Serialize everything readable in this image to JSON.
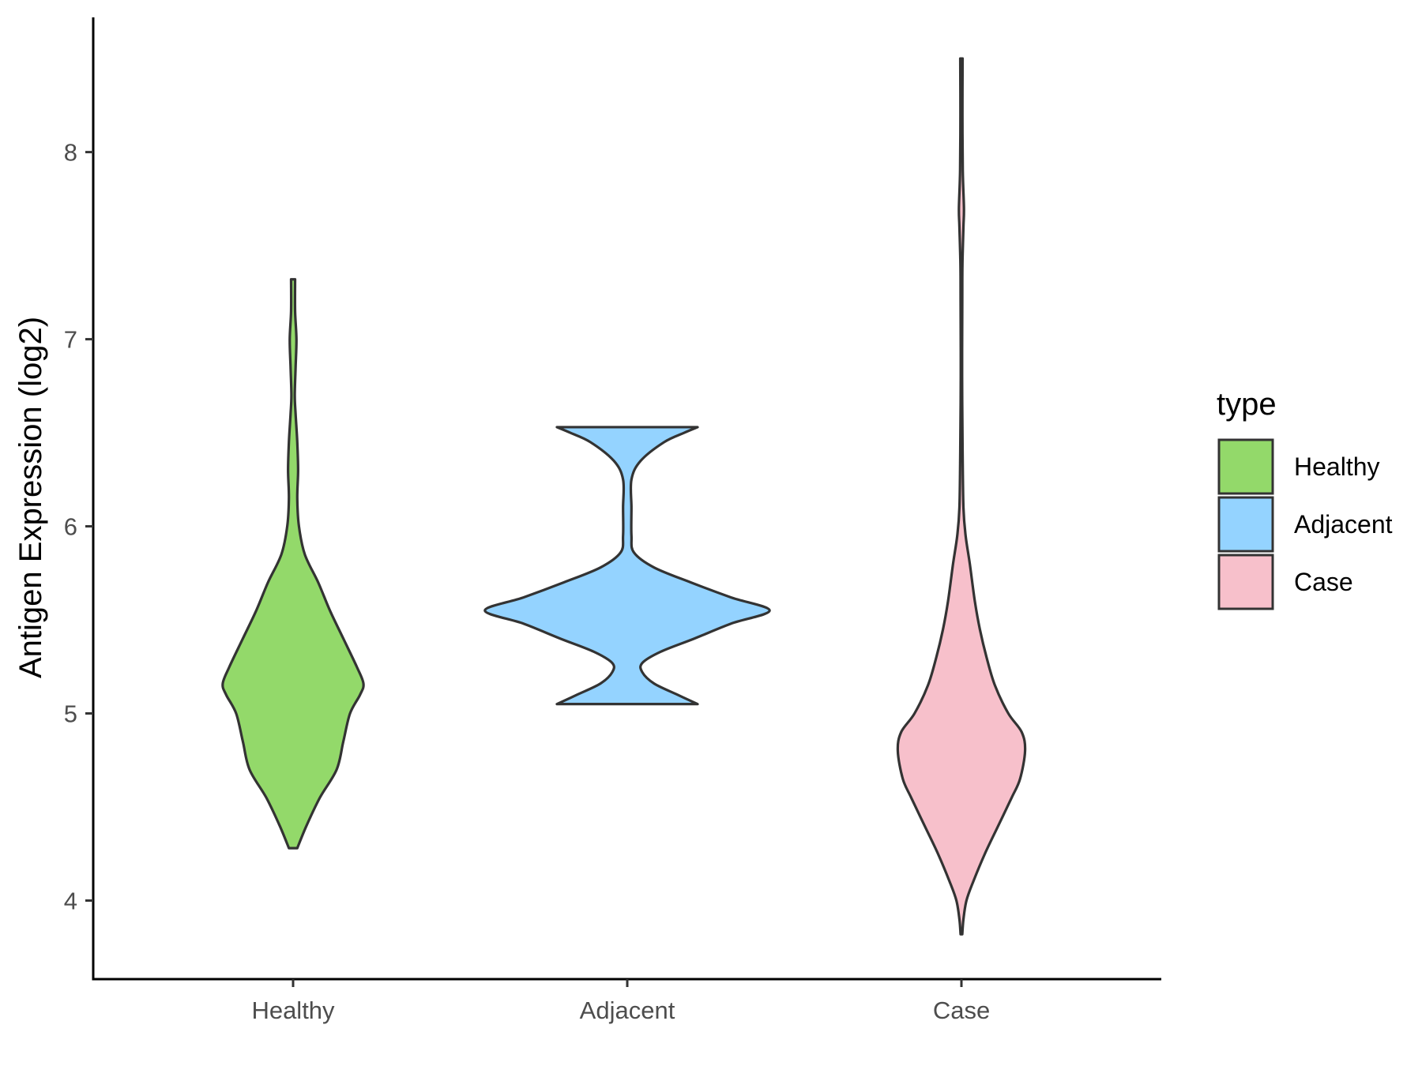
{
  "chart_data": {
    "type": "violin",
    "title": "",
    "xlabel": "",
    "ylabel": "Antigen Expression (log2)",
    "ylim": [
      3.58,
      8.72
    ],
    "yticks": [
      4,
      5,
      6,
      7,
      8
    ],
    "categories": [
      "Healthy",
      "Adjacent",
      "Case"
    ],
    "grid": false,
    "legend": {
      "title": "type",
      "position": "right",
      "entries": [
        "Healthy",
        "Adjacent",
        "Case"
      ]
    },
    "series": [
      {
        "name": "Healthy",
        "color": "#93D96A",
        "min": 4.28,
        "max": 7.32,
        "profile": [
          [
            4.28,
            0.025
          ],
          [
            4.4,
            0.08
          ],
          [
            4.55,
            0.16
          ],
          [
            4.7,
            0.26
          ],
          [
            4.85,
            0.3
          ],
          [
            5.0,
            0.34
          ],
          [
            5.1,
            0.4
          ],
          [
            5.16,
            0.42
          ],
          [
            5.25,
            0.38
          ],
          [
            5.4,
            0.3
          ],
          [
            5.55,
            0.22
          ],
          [
            5.7,
            0.15
          ],
          [
            5.85,
            0.07
          ],
          [
            6.0,
            0.035
          ],
          [
            6.15,
            0.025
          ],
          [
            6.3,
            0.03
          ],
          [
            6.45,
            0.025
          ],
          [
            6.6,
            0.015
          ],
          [
            6.7,
            0.01
          ],
          [
            6.85,
            0.015
          ],
          [
            7.0,
            0.02
          ],
          [
            7.15,
            0.012
          ],
          [
            7.32,
            0.012
          ]
        ]
      },
      {
        "name": "Adjacent",
        "color": "#94D3FF",
        "min": 5.05,
        "max": 6.53,
        "profile": [
          [
            5.05,
            0.42
          ],
          [
            5.1,
            0.3
          ],
          [
            5.16,
            0.16
          ],
          [
            5.22,
            0.09
          ],
          [
            5.27,
            0.09
          ],
          [
            5.33,
            0.2
          ],
          [
            5.4,
            0.4
          ],
          [
            5.48,
            0.62
          ],
          [
            5.55,
            0.85
          ],
          [
            5.62,
            0.62
          ],
          [
            5.7,
            0.38
          ],
          [
            5.78,
            0.16
          ],
          [
            5.86,
            0.04
          ],
          [
            5.95,
            0.025
          ],
          [
            6.1,
            0.025
          ],
          [
            6.25,
            0.025
          ],
          [
            6.35,
            0.08
          ],
          [
            6.45,
            0.22
          ],
          [
            6.5,
            0.34
          ],
          [
            6.53,
            0.42
          ]
        ]
      },
      {
        "name": "Case",
        "color": "#F7C0CB",
        "min": 3.82,
        "max": 8.5,
        "profile": [
          [
            3.82,
            0.005
          ],
          [
            3.9,
            0.012
          ],
          [
            4.0,
            0.03
          ],
          [
            4.1,
            0.07
          ],
          [
            4.25,
            0.14
          ],
          [
            4.4,
            0.22
          ],
          [
            4.55,
            0.3
          ],
          [
            4.65,
            0.35
          ],
          [
            4.8,
            0.38
          ],
          [
            4.9,
            0.36
          ],
          [
            5.0,
            0.28
          ],
          [
            5.15,
            0.2
          ],
          [
            5.3,
            0.15
          ],
          [
            5.45,
            0.11
          ],
          [
            5.6,
            0.08
          ],
          [
            5.8,
            0.05
          ],
          [
            5.95,
            0.025
          ],
          [
            6.1,
            0.012
          ],
          [
            6.4,
            0.007
          ],
          [
            6.8,
            0.004
          ],
          [
            7.2,
            0.005
          ],
          [
            7.4,
            0.006
          ],
          [
            7.6,
            0.012
          ],
          [
            7.7,
            0.015
          ],
          [
            7.9,
            0.008
          ],
          [
            8.2,
            0.006
          ],
          [
            8.5,
            0.007
          ]
        ]
      }
    ]
  }
}
